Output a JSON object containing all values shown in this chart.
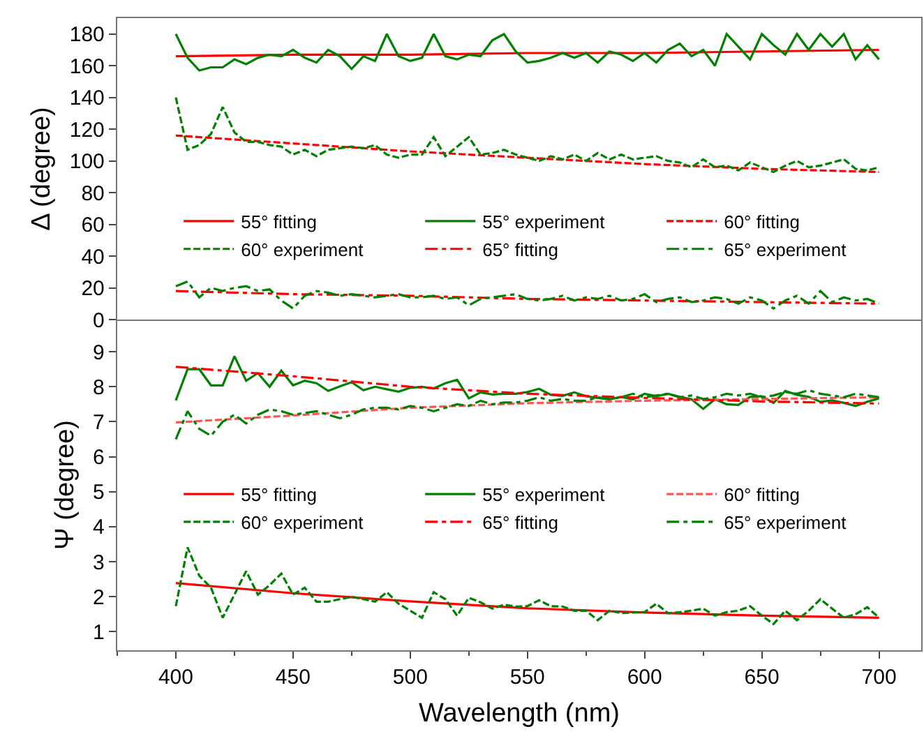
{
  "chart_data": [
    {
      "type": "line",
      "ylabel": "Δ (degree)",
      "xlim": [
        375,
        718
      ],
      "ylim": [
        0,
        190
      ],
      "xticks": [
        400,
        450,
        500,
        550,
        600,
        650,
        700
      ],
      "yticks": [
        0,
        20,
        40,
        60,
        80,
        100,
        120,
        140,
        160,
        180
      ],
      "tick_labels": "y",
      "legend": "right",
      "grid": false,
      "series": [
        {
          "name": "55° fitting",
          "color": "#ff0000",
          "line_style": "solid",
          "x": [
            400,
            450,
            500,
            550,
            600,
            650,
            700
          ],
          "values": [
            166,
            167,
            167,
            168,
            168,
            169,
            170
          ]
        },
        {
          "name": "55° experiment",
          "color": "#008000",
          "line_style": "solid",
          "x": [
            400,
            405,
            410,
            415,
            420,
            425,
            430,
            435,
            440,
            445,
            450,
            455,
            460,
            465,
            470,
            475,
            480,
            485,
            490,
            495,
            500,
            505,
            510,
            515,
            520,
            525,
            530,
            535,
            540,
            545,
            550,
            555,
            560,
            565,
            570,
            575,
            580,
            585,
            590,
            595,
            600,
            605,
            610,
            615,
            620,
            625,
            630,
            635,
            640,
            645,
            650,
            655,
            660,
            665,
            670,
            675,
            680,
            685,
            690,
            695,
            700
          ],
          "values": [
            180,
            165,
            157,
            159,
            159,
            164,
            161,
            165,
            167,
            166,
            170,
            165,
            162,
            170,
            166,
            158,
            166,
            163,
            180,
            166,
            163,
            165,
            180,
            166,
            164,
            167,
            166,
            176,
            180,
            169,
            162,
            163,
            165,
            168,
            165,
            168,
            162,
            169,
            167,
            163,
            168,
            162,
            170,
            174,
            166,
            170,
            160,
            180,
            172,
            164,
            180,
            173,
            167,
            180,
            170,
            180,
            172,
            180,
            164,
            173,
            164
          ]
        },
        {
          "name": "60° fitting",
          "color": "#ff0000",
          "line_style": "dashed",
          "x": [
            400,
            450,
            500,
            550,
            600,
            650,
            700
          ],
          "values": [
            116,
            111,
            106,
            102,
            98,
            95,
            93
          ]
        },
        {
          "name": "60° experiment",
          "color": "#008000",
          "line_style": "dashed",
          "x": [
            400,
            405,
            410,
            415,
            420,
            425,
            430,
            435,
            440,
            445,
            450,
            455,
            460,
            465,
            470,
            475,
            480,
            485,
            490,
            495,
            500,
            505,
            510,
            515,
            520,
            525,
            530,
            535,
            540,
            545,
            550,
            555,
            560,
            565,
            570,
            575,
            580,
            585,
            590,
            595,
            600,
            605,
            610,
            615,
            620,
            625,
            630,
            635,
            640,
            645,
            650,
            655,
            660,
            665,
            670,
            675,
            680,
            685,
            690,
            695,
            700
          ],
          "values": [
            140,
            107,
            110,
            117,
            134,
            118,
            112,
            112,
            110,
            109,
            104,
            107,
            103,
            107,
            108,
            109,
            108,
            110,
            104,
            102,
            104,
            104,
            115,
            103,
            109,
            115,
            104,
            105,
            107,
            104,
            102,
            100,
            103,
            101,
            104,
            100,
            105,
            101,
            104,
            101,
            102,
            103,
            100,
            99,
            96,
            101,
            96,
            97,
            94,
            99,
            96,
            93,
            97,
            100,
            96,
            97,
            99,
            101,
            95,
            94,
            96
          ]
        },
        {
          "name": "65° fitting",
          "color": "#ff0000",
          "line_style": "dashdot",
          "x": [
            400,
            450,
            500,
            550,
            600,
            650,
            700
          ],
          "values": [
            18,
            16,
            15,
            13,
            12,
            11,
            10
          ]
        },
        {
          "name": "65° experiment",
          "color": "#008000",
          "line_style": "dashdot",
          "x": [
            400,
            405,
            410,
            415,
            420,
            425,
            430,
            435,
            440,
            445,
            450,
            455,
            460,
            465,
            470,
            475,
            480,
            485,
            490,
            495,
            500,
            505,
            510,
            515,
            520,
            525,
            530,
            535,
            540,
            545,
            550,
            555,
            560,
            565,
            570,
            575,
            580,
            585,
            590,
            595,
            600,
            605,
            610,
            615,
            620,
            625,
            630,
            635,
            640,
            645,
            650,
            655,
            660,
            665,
            670,
            675,
            680,
            685,
            690,
            695,
            700
          ],
          "values": [
            21,
            24,
            14,
            20,
            18,
            20,
            21,
            18,
            19,
            12,
            7,
            15,
            18,
            17,
            15,
            16,
            15,
            14,
            15,
            16,
            14,
            14,
            15,
            13,
            14,
            9,
            13,
            14,
            15,
            16,
            13,
            12,
            13,
            15,
            12,
            14,
            13,
            15,
            12,
            13,
            16,
            11,
            13,
            14,
            11,
            12,
            14,
            13,
            10,
            14,
            12,
            7,
            12,
            15,
            10,
            18,
            11,
            14,
            12,
            13,
            10
          ]
        }
      ]
    },
    {
      "type": "line",
      "xlabel": "Wavelength (nm)",
      "ylabel": "Ψ (degree)",
      "xlim": [
        375,
        718
      ],
      "ylim": [
        0.47,
        9.92
      ],
      "xticks": [
        400,
        450,
        500,
        550,
        600,
        650,
        700
      ],
      "yticks": [
        1,
        2,
        3,
        4,
        5,
        6,
        7,
        8,
        9
      ],
      "legend": "right",
      "grid": false,
      "series": [
        {
          "name": "55° fitting",
          "color": "#ff0000",
          "line_style": "solid",
          "x": [
            400,
            450,
            500,
            550,
            600,
            650,
            700
          ],
          "values": [
            2.39,
            2.1,
            1.87,
            1.67,
            1.55,
            1.46,
            1.4
          ]
        },
        {
          "name": "55° experiment",
          "color": "#008000",
          "line_style": "solid",
          "x": [
            400,
            405,
            410,
            415,
            420,
            425,
            430,
            435,
            440,
            445,
            450,
            455,
            460,
            465,
            470,
            475,
            480,
            485,
            490,
            495,
            500,
            505,
            510,
            515,
            520,
            525,
            530,
            535,
            540,
            545,
            550,
            555,
            560,
            565,
            570,
            575,
            580,
            585,
            590,
            595,
            600,
            605,
            610,
            615,
            620,
            625,
            630,
            635,
            640,
            645,
            650,
            655,
            660,
            665,
            670,
            675,
            680,
            685,
            690,
            695,
            700
          ],
          "values": [
            7.61,
            8.5,
            8.5,
            8.04,
            8.04,
            8.87,
            8.17,
            8.39,
            8.0,
            8.46,
            8.04,
            8.17,
            8.1,
            7.88,
            8.01,
            8.13,
            7.9,
            8.0,
            7.93,
            7.86,
            7.97,
            8.0,
            7.95,
            8.1,
            8.2,
            7.67,
            7.84,
            7.78,
            7.8,
            7.8,
            7.85,
            7.94,
            7.77,
            7.74,
            7.84,
            7.73,
            7.68,
            7.64,
            7.71,
            7.64,
            7.8,
            7.73,
            7.8,
            7.71,
            7.64,
            7.37,
            7.64,
            7.5,
            7.48,
            7.71,
            7.73,
            7.54,
            7.88,
            7.77,
            7.71,
            7.57,
            7.61,
            7.54,
            7.45,
            7.57,
            7.67
          ]
        },
        {
          "name": "60° fitting",
          "color": "#ff5555",
          "line_style": "dashed",
          "x": [
            400,
            450,
            500,
            550,
            600,
            650,
            700
          ],
          "values": [
            6.98,
            7.18,
            7.4,
            7.53,
            7.6,
            7.65,
            7.7
          ]
        },
        {
          "name": "60° experiment",
          "color": "#008000",
          "line_style": "dashed",
          "x": [
            400,
            405,
            410,
            415,
            420,
            425,
            430,
            435,
            440,
            445,
            450,
            455,
            460,
            465,
            470,
            475,
            480,
            485,
            490,
            495,
            500,
            505,
            510,
            515,
            520,
            525,
            530,
            535,
            540,
            545,
            550,
            555,
            560,
            565,
            570,
            575,
            580,
            585,
            590,
            595,
            600,
            605,
            610,
            615,
            620,
            625,
            630,
            635,
            640,
            645,
            650,
            655,
            660,
            665,
            670,
            675,
            680,
            685,
            690,
            695,
            700
          ],
          "values": [
            1.73,
            3.41,
            2.6,
            2.26,
            1.4,
            2.06,
            2.73,
            2.06,
            2.33,
            2.66,
            2.06,
            2.26,
            1.86,
            1.86,
            1.93,
            2.0,
            1.93,
            1.86,
            2.13,
            1.8,
            1.6,
            1.4,
            2.13,
            1.93,
            1.46,
            1.97,
            1.84,
            1.66,
            1.77,
            1.72,
            1.73,
            1.9,
            1.73,
            1.72,
            1.6,
            1.6,
            1.33,
            1.6,
            1.53,
            1.55,
            1.56,
            1.8,
            1.53,
            1.56,
            1.6,
            1.66,
            1.46,
            1.56,
            1.6,
            1.73,
            1.46,
            1.22,
            1.6,
            1.33,
            1.6,
            1.93,
            1.66,
            1.4,
            1.5,
            1.7,
            1.4
          ]
        },
        {
          "name": "65° fitting",
          "color": "#ff0000",
          "line_style": "dashdot",
          "x": [
            400,
            450,
            500,
            550,
            600,
            650,
            700
          ],
          "values": [
            8.57,
            8.3,
            8.0,
            7.8,
            7.68,
            7.58,
            7.52
          ]
        },
        {
          "name": "65° experiment",
          "color": "#008000",
          "line_style": "dashdot",
          "x": [
            400,
            405,
            410,
            415,
            420,
            425,
            430,
            435,
            440,
            445,
            450,
            455,
            460,
            465,
            470,
            475,
            480,
            485,
            490,
            495,
            500,
            505,
            510,
            515,
            520,
            525,
            530,
            535,
            540,
            545,
            550,
            555,
            560,
            565,
            570,
            575,
            580,
            585,
            590,
            595,
            600,
            605,
            610,
            615,
            620,
            625,
            630,
            635,
            640,
            645,
            650,
            655,
            660,
            665,
            670,
            675,
            680,
            685,
            690,
            695,
            700
          ],
          "values": [
            6.5,
            7.3,
            6.8,
            6.6,
            7.0,
            7.2,
            6.95,
            7.2,
            7.35,
            7.3,
            7.2,
            7.25,
            7.3,
            7.2,
            7.1,
            7.2,
            7.35,
            7.4,
            7.4,
            7.35,
            7.45,
            7.4,
            7.3,
            7.4,
            7.5,
            7.45,
            7.6,
            7.5,
            7.55,
            7.55,
            7.6,
            7.7,
            7.6,
            7.65,
            7.6,
            7.6,
            7.7,
            7.65,
            7.7,
            7.8,
            7.7,
            7.75,
            7.8,
            7.7,
            7.75,
            7.65,
            7.7,
            7.8,
            7.75,
            7.8,
            7.7,
            7.75,
            7.85,
            7.8,
            7.9,
            7.8,
            7.75,
            7.7,
            7.8,
            7.75,
            7.7
          ]
        }
      ]
    }
  ]
}
